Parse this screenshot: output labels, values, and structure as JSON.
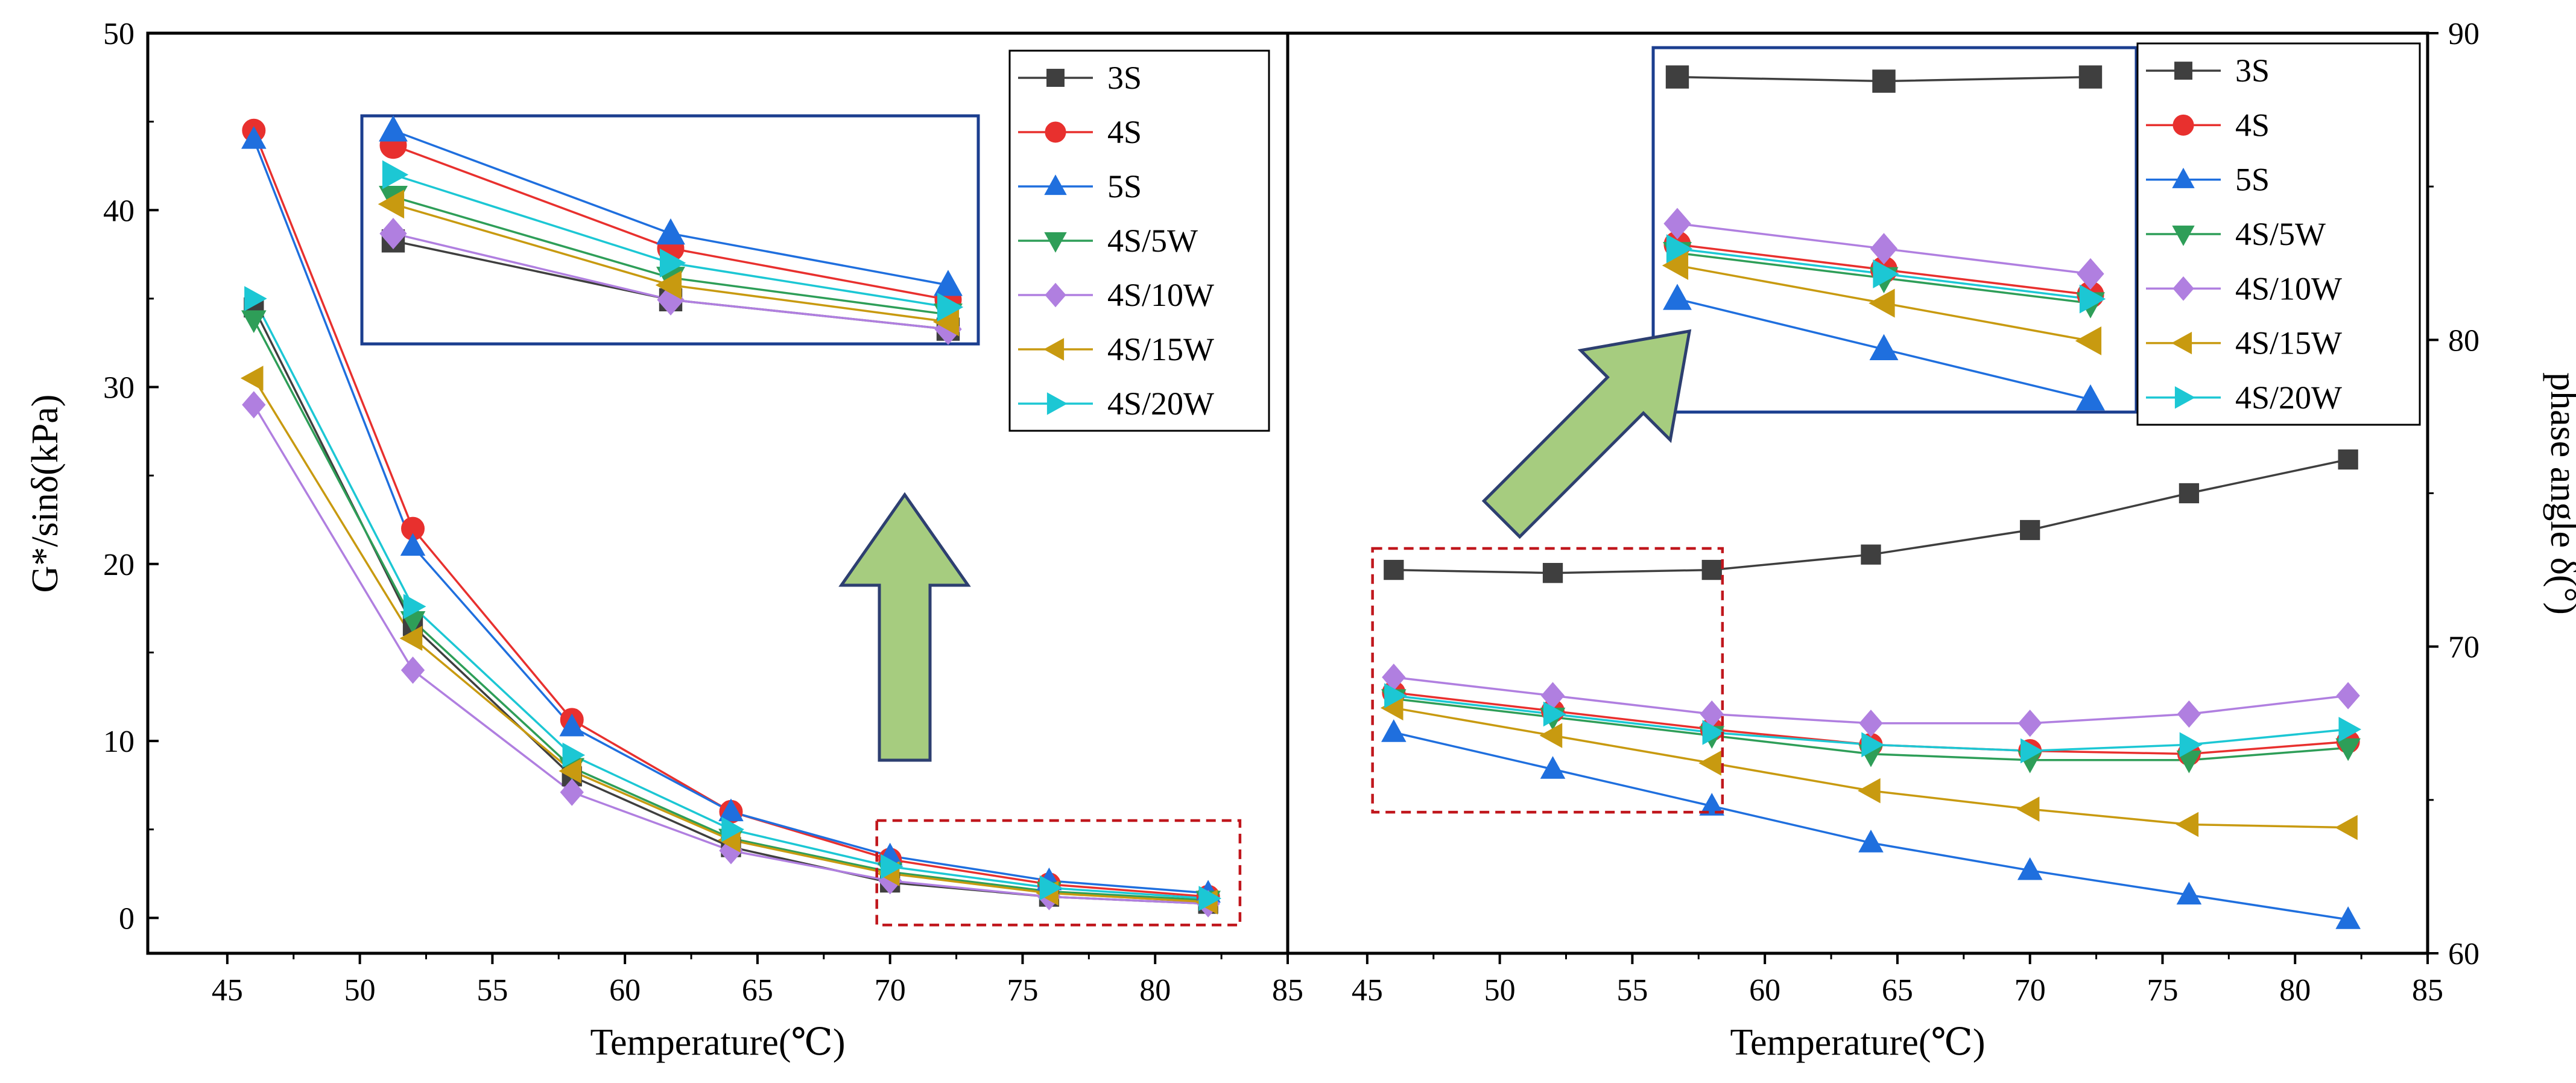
{
  "figure": {
    "description_free": true
  },
  "series_styles": [
    {
      "name": "3S",
      "color": "#3f3f3f",
      "marker": "square"
    },
    {
      "name": "4S",
      "color": "#e8302e",
      "marker": "circle"
    },
    {
      "name": "5S",
      "color": "#1f6fde",
      "marker": "triangle-up"
    },
    {
      "name": "4S/5W",
      "color": "#2e9e58",
      "marker": "triangle-down"
    },
    {
      "name": "4S/10W",
      "color": "#b07fe0",
      "marker": "diamond"
    },
    {
      "name": "4S/15W",
      "color": "#c89a10",
      "marker": "triangle-left"
    },
    {
      "name": "4S/20W",
      "color": "#1cc7d4",
      "marker": "triangle-right"
    }
  ],
  "chart_data": [
    {
      "type": "line",
      "title": "",
      "xlabel": "Temperature(℃)",
      "ylabel": "G*/sinδ(kPa)",
      "xlim": [
        42,
        85
      ],
      "ylim": [
        -2,
        50
      ],
      "xticks": [
        45,
        50,
        55,
        60,
        65,
        70,
        75,
        80,
        85
      ],
      "yticks": [
        0,
        10,
        20,
        30,
        40,
        50
      ],
      "x": [
        46,
        52,
        58,
        64,
        70,
        76,
        82
      ],
      "series": [
        {
          "name": "3S",
          "values": [
            34.5,
            16.5,
            8.0,
            4.0,
            2.0,
            1.2,
            0.8
          ]
        },
        {
          "name": "4S",
          "values": [
            44.5,
            22.0,
            11.2,
            6.0,
            3.3,
            1.9,
            1.2
          ]
        },
        {
          "name": "5S",
          "values": [
            44.0,
            21.0,
            10.8,
            6.0,
            3.5,
            2.1,
            1.4
          ]
        },
        {
          "name": "4S/5W",
          "values": [
            33.8,
            16.8,
            8.5,
            4.5,
            2.6,
            1.5,
            1.0
          ]
        },
        {
          "name": "4S/10W",
          "values": [
            29.0,
            14.0,
            7.1,
            3.8,
            2.1,
            1.2,
            0.8
          ]
        },
        {
          "name": "4S/15W",
          "values": [
            30.5,
            15.8,
            8.3,
            4.4,
            2.5,
            1.4,
            0.9
          ]
        },
        {
          "name": "4S/20W",
          "values": [
            35.0,
            17.6,
            9.2,
            5.0,
            2.9,
            1.7,
            1.1
          ]
        }
      ],
      "legend": "top-right",
      "annotations": [
        "inset zoom of the 70–82 ℃ region (dashed red box), arrow pointing up to inset"
      ],
      "inset": {
        "x": [
          70,
          76,
          82
        ],
        "ylim": [
          0.6,
          3.7
        ]
      }
    },
    {
      "type": "line",
      "title": "",
      "xlabel": "Temperature(℃)",
      "ylabel": "phase angle δ(°)",
      "xlim": [
        42,
        85
      ],
      "ylim": [
        60,
        90
      ],
      "xticks": [
        45,
        50,
        55,
        60,
        65,
        70,
        75,
        80,
        85
      ],
      "yticks": [
        60,
        70,
        80,
        90
      ],
      "x": [
        46,
        52,
        58,
        64,
        70,
        76,
        82
      ],
      "series": [
        {
          "name": "3S",
          "values": [
            72.5,
            72.4,
            72.5,
            73.0,
            73.8,
            75.0,
            76.1
          ]
        },
        {
          "name": "4S",
          "values": [
            68.5,
            67.9,
            67.3,
            66.8,
            66.6,
            66.5,
            66.9
          ]
        },
        {
          "name": "5S",
          "values": [
            67.2,
            66.0,
            64.8,
            63.6,
            62.7,
            61.9,
            61.1
          ]
        },
        {
          "name": "4S/5W",
          "values": [
            68.3,
            67.7,
            67.1,
            66.5,
            66.3,
            66.3,
            66.7
          ]
        },
        {
          "name": "4S/10W",
          "values": [
            69.0,
            68.4,
            67.8,
            67.5,
            67.5,
            67.8,
            68.4
          ]
        },
        {
          "name": "4S/15W",
          "values": [
            68.0,
            67.1,
            66.2,
            65.3,
            64.7,
            64.2,
            64.1
          ]
        },
        {
          "name": "4S/20W",
          "values": [
            68.4,
            67.8,
            67.2,
            66.8,
            66.6,
            66.8,
            67.3
          ]
        }
      ],
      "legend": "top-right",
      "annotations": [
        "inset zoom of the 46–58 ℃ region (dashed red box), arrow pointing up to inset"
      ],
      "inset": {
        "x": [
          46,
          52,
          58
        ],
        "ylim": [
          64.5,
          73.2
        ]
      }
    }
  ]
}
